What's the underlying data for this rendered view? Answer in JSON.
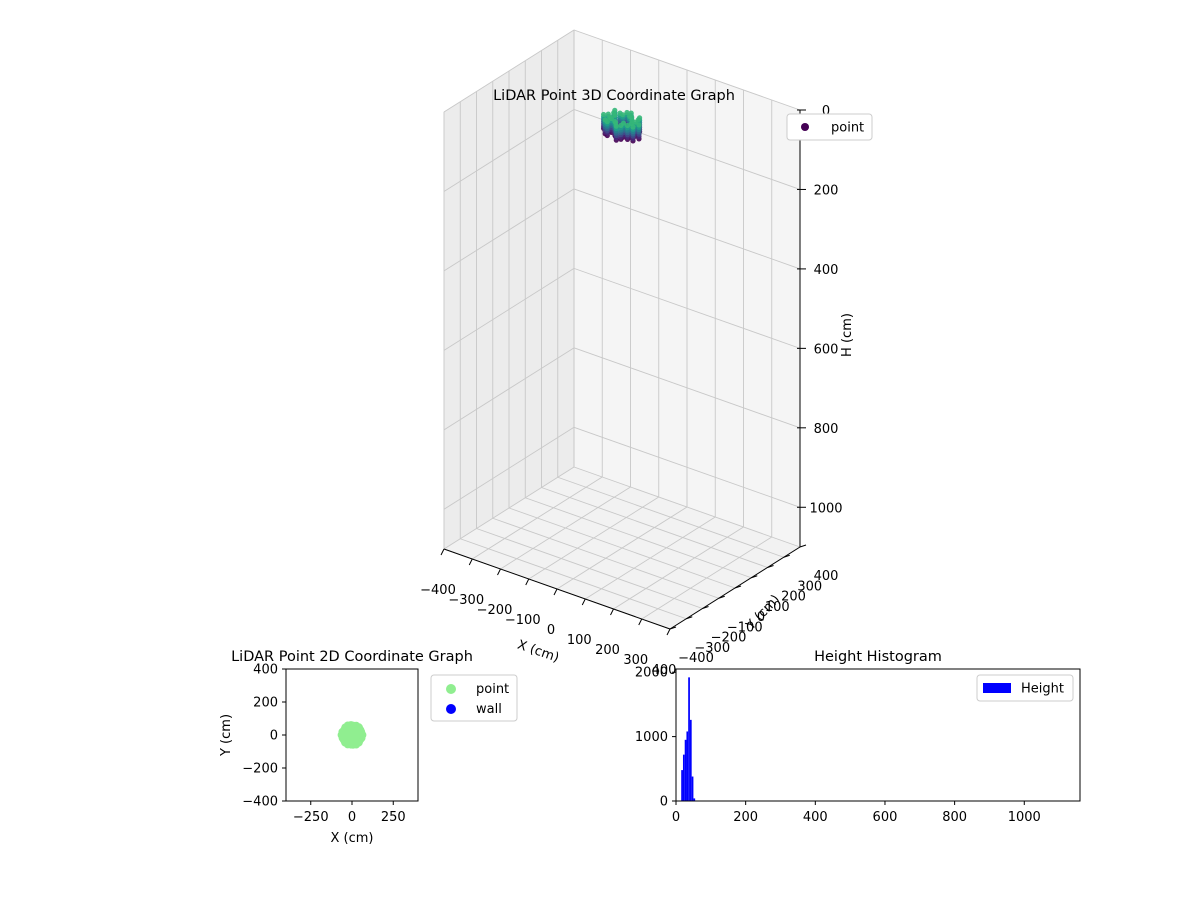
{
  "chart_data": [
    {
      "type": "scatter",
      "projection": "3d",
      "title": "LiDAR Point 3D Coordinate Graph",
      "xlabel": "X (cm)",
      "ylabel": "Y (cm)",
      "zlabel": "H (cm)",
      "xlim": [
        -400,
        400
      ],
      "ylim": [
        -400,
        400
      ],
      "zlim": [
        1100,
        0
      ],
      "zaxis_inverted": true,
      "xticks": [
        "−400",
        "−300",
        "−200",
        "−100",
        "0",
        "100",
        "200",
        "300",
        "400"
      ],
      "yticks": [
        "−400",
        "−300",
        "−200",
        "−100",
        "0",
        "100",
        "200",
        "300",
        "400"
      ],
      "zticks": [
        "0",
        "200",
        "400",
        "600",
        "800",
        "1000"
      ],
      "legend": [
        "point"
      ],
      "legend_position": "top-right",
      "grid": true,
      "colormap": "viridis",
      "series": [
        {
          "name": "point",
          "color": "#440154",
          "shape": "ring",
          "center": [
            0,
            0
          ],
          "outer_radius_cm": 60,
          "inner_radius_cm": 30,
          "height_range_cm": [
            20,
            55
          ]
        }
      ]
    },
    {
      "type": "scatter",
      "title": "LiDAR Point 2D Coordinate Graph",
      "xlabel": "X (cm)",
      "ylabel": "Y (cm)",
      "xlim": [
        -400,
        400
      ],
      "ylim": [
        -400,
        400
      ],
      "xticks": [
        "−250",
        "0",
        "250"
      ],
      "yticks": [
        "400",
        "200",
        "0",
        "−200",
        "−400"
      ],
      "legend": [
        "point",
        "wall"
      ],
      "legend_position": "outside-right",
      "series": [
        {
          "name": "point",
          "color": "#90ee90",
          "shape": "disk",
          "center": [
            0,
            0
          ],
          "radius_cm": 70
        },
        {
          "name": "wall",
          "color": "#0000ff",
          "points": []
        }
      ]
    },
    {
      "type": "bar",
      "title": "Height Histogram",
      "xlabel": "",
      "ylabel": "",
      "xlim": [
        0,
        1160
      ],
      "ylim": [
        0,
        2050
      ],
      "xticks": [
        "0",
        "200",
        "400",
        "600",
        "800",
        "1000"
      ],
      "yticks": [
        "0",
        "1000",
        "2000"
      ],
      "legend": [
        "Height"
      ],
      "legend_position": "top-right",
      "series": [
        {
          "name": "Height",
          "color": "#0000ff",
          "bin_width": 5,
          "bin_starts": [
            15,
            20,
            25,
            30,
            35,
            40,
            45,
            50
          ],
          "values": [
            480,
            720,
            950,
            1080,
            1920,
            1260,
            380,
            40
          ]
        }
      ]
    }
  ]
}
